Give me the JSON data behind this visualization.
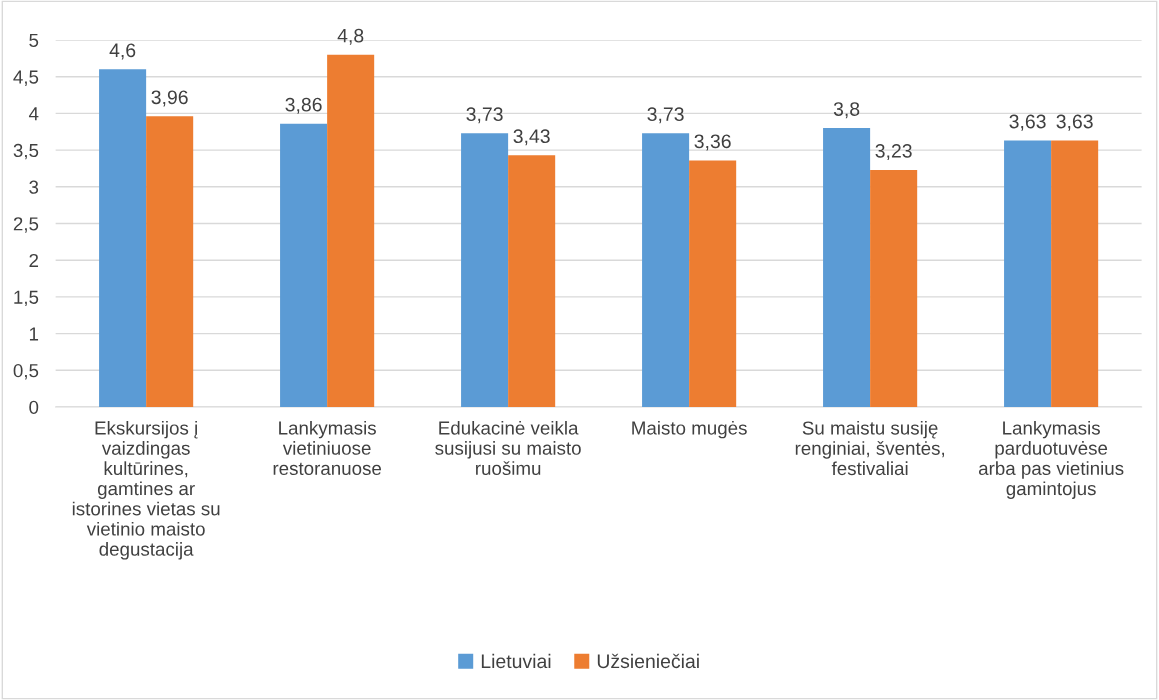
{
  "chart_data": {
    "type": "bar",
    "categories": [
      "Ekskursijos į\nvaizdingas\nkultūrines,\ngamtines ar\nistorines vietas su\nvietinio maisto\ndegustacija",
      "Lankymasis\nvietiniuose\nrestoranuose",
      "Edukacinė veikla\nsusijusi su maisto\nruošimu",
      "Maisto mugės",
      "Su maistu susiję\nrenginiai, šventės,\nfestivaliai",
      "Lankymasis\nparduotuvėse\narba pas vietinius\ngamintojus"
    ],
    "series": [
      {
        "name": "Lietuviai",
        "color": "#5b9bd5",
        "values": [
          4.6,
          3.86,
          3.73,
          3.73,
          3.8,
          3.63
        ],
        "value_labels": [
          "4,6",
          "3,86",
          "3,73",
          "3,73",
          "3,8",
          "3,63"
        ]
      },
      {
        "name": "Užsieniečiai",
        "color": "#ed7d31",
        "values": [
          3.96,
          4.8,
          3.43,
          3.36,
          3.23,
          3.63
        ],
        "value_labels": [
          "3,96",
          "4,8",
          "3,43",
          "3,36",
          "3,23",
          "3,63"
        ]
      }
    ],
    "ylim": [
      0,
      5
    ],
    "yticks": [
      0,
      {
        "value": 0.5,
        "label": "0,5"
      },
      1,
      {
        "value": 1.5,
        "label": "1,5"
      },
      2,
      {
        "value": 2.5,
        "label": "2,5"
      },
      3,
      {
        "value": 3.5,
        "label": "3,5"
      },
      4,
      {
        "value": 4.5,
        "label": "4,5"
      },
      5
    ],
    "grid": "y",
    "legend": "bottom"
  }
}
